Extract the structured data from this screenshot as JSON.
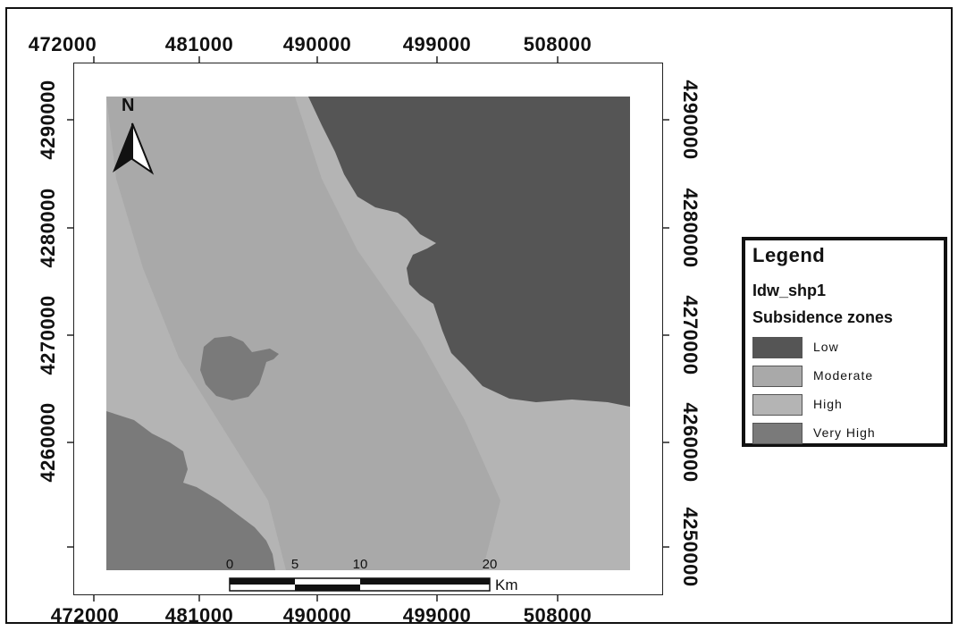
{
  "map": {
    "top_x_ticks": [
      "472000",
      "481000",
      "490000",
      "499000",
      "508000"
    ],
    "bottom_x_ticks": [
      "472000",
      "481000",
      "490000",
      "499000",
      "508000"
    ],
    "left_y_ticks": [
      "4290000",
      "4280000",
      "4270000",
      "4260000"
    ],
    "right_y_ticks": [
      "4290000",
      "4280000",
      "4270000",
      "4260000",
      "4250000"
    ]
  },
  "north_arrow": {
    "label": "N"
  },
  "scale_bar": {
    "labels": [
      "0",
      "5",
      "10",
      "20"
    ],
    "unit": "Km"
  },
  "legend": {
    "title": "Legend",
    "layer": "Idw_shp1",
    "field": "Subsidence zones",
    "items": [
      {
        "label": "Low",
        "color": "#555555"
      },
      {
        "label": "Moderate",
        "color": "#a9a9a9"
      },
      {
        "label": "High",
        "color": "#b4b4b4"
      },
      {
        "label": "Very High",
        "color": "#7a7a7a"
      }
    ]
  },
  "colors": {
    "low": "#555555",
    "moderate": "#a9a9a9",
    "high": "#b4b4b4",
    "very_high": "#7a7a7a"
  }
}
